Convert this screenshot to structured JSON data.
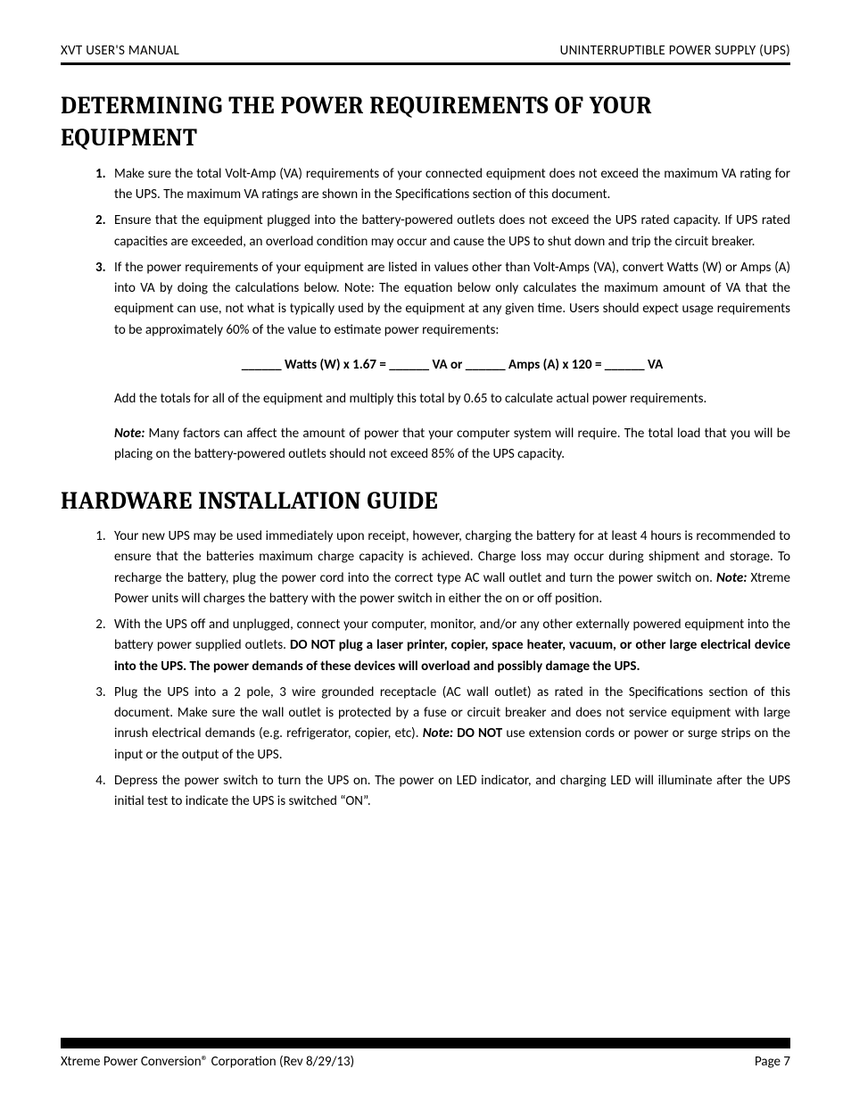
{
  "header": {
    "left": "XVT USER'S MANUAL",
    "right": "UNINTERRUPTIBLE POWER SUPPLY (UPS)"
  },
  "section1": {
    "title": "DETERMINING THE POWER REQUIREMENTS OF YOUR EQUIPMENT",
    "items": [
      "Make sure the total Volt-Amp (VA) requirements of your connected equipment does not exceed the maximum VA rating for the UPS. The maximum VA ratings are shown in the Specifications section of this document.",
      "Ensure that the equipment plugged into the battery-powered outlets does not exceed the UPS rated capacity. If UPS rated capacities are exceeded, an overload condition may occur and cause the UPS to shut down and trip the circuit breaker.",
      "If the power requirements of your equipment are listed in values other than Volt-Amps (VA), convert Watts (W) or Amps (A) into VA by doing the calculations below. Note: The equation below only calculates the maximum amount of VA that the equipment can use, not what is typically used by the equipment at any given time. Users should expect usage requirements to be approximately 60% of the value to estimate power requirements:"
    ],
    "formula": "______ Watts (W) x 1.67 = ______ VA or ______ Amps (A) x 120 = ______ VA",
    "after_formula": "Add the totals for all of the equipment and multiply this total by 0.65 to calculate actual power requirements.",
    "note_label": "Note:",
    "note_body": " Many factors can affect the amount of power that your computer system will require. The total load that you will be placing on the battery-powered outlets should not exceed 85% of the UPS capacity."
  },
  "section2": {
    "title": "HARDWARE INSTALLATION GUIDE",
    "items": [
      {
        "pre": "Your new UPS may be used immediately upon receipt, however, charging the battery for at least 4 hours is recommended to ensure that the batteries maximum charge capacity is achieved. Charge loss may occur during shipment and storage. To recharge the battery, plug the power cord into the correct type AC wall outlet and turn the power switch on. ",
        "note_label": "Note:",
        "post": " Xtreme Power units will charges the battery with the power switch in either the on or off position."
      },
      {
        "pre": "With the UPS off and unplugged, connect your computer, monitor, and/or any other externally powered equipment into the battery power supplied outlets. ",
        "bold": "DO NOT plug a laser printer, copier, space heater, vacuum, or other large electrical device into the UPS. The power demands of these devices will overload and possibly damage the UPS."
      },
      {
        "pre": "Plug the UPS into a 2 pole, 3 wire grounded receptacle (AC wall outlet) as rated in the Specifications section of this document. Make sure the wall outlet is protected by a fuse or circuit breaker and does not service equipment with large inrush electrical demands (e.g. refrigerator, copier, etc). ",
        "note_label": "Note:",
        "bold_after_note": " DO NOT",
        "post": " use extension cords or power or surge strips on the input or the output of the UPS."
      },
      {
        "pre": "Depress the power switch to turn the UPS on. The power on LED indicator, and charging LED will illuminate after the UPS initial test to indicate the UPS is switched “ON”."
      }
    ]
  },
  "footer": {
    "left": "Xtreme Power Conversion® Corporation (Rev 8/29/13)",
    "right": "Page 7"
  }
}
